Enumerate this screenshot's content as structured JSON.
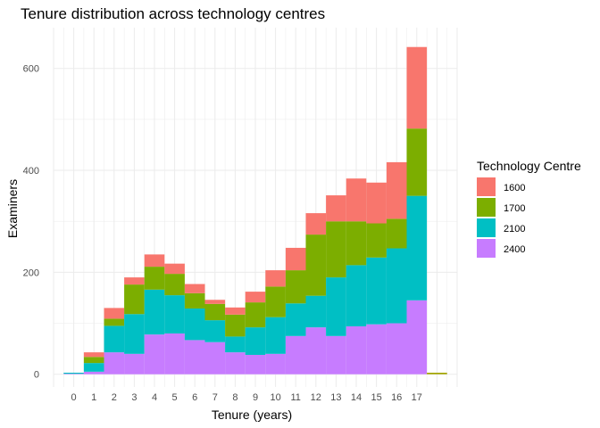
{
  "chart_data": {
    "type": "bar",
    "stacked": true,
    "title": "Tenure distribution across technology centres",
    "xlabel": "Tenure (years)",
    "ylabel": "Examiners",
    "categories": [
      "0",
      "1",
      "2",
      "3",
      "4",
      "5",
      "6",
      "7",
      "8",
      "9",
      "10",
      "11",
      "12",
      "13",
      "14",
      "15",
      "16",
      "17"
    ],
    "xlim": [
      -1,
      19
    ],
    "ylim": [
      -25,
      680
    ],
    "yticks": [
      0,
      200,
      400,
      600
    ],
    "grid": true,
    "legend": {
      "title": "Technology Centre",
      "placement": "right",
      "entries": [
        {
          "label": "1600",
          "color": "#F8766D"
        },
        {
          "label": "1700",
          "color": "#7CAE00"
        },
        {
          "label": "2100",
          "color": "#00BFC4"
        },
        {
          "label": "2400",
          "color": "#C77CFF"
        }
      ]
    },
    "series": [
      {
        "name": "2400",
        "color": "#C77CFF",
        "values": [
          1,
          5,
          43,
          40,
          78,
          80,
          67,
          63,
          43,
          38,
          40,
          75,
          92,
          75,
          94,
          98,
          100,
          145
        ]
      },
      {
        "name": "2100",
        "color": "#00BFC4",
        "values": [
          2,
          17,
          52,
          78,
          88,
          75,
          62,
          43,
          31,
          54,
          72,
          64,
          62,
          115,
          120,
          131,
          147,
          205
        ]
      },
      {
        "name": "1700",
        "color": "#7CAE00",
        "values": [
          0,
          12,
          14,
          58,
          45,
          42,
          30,
          32,
          43,
          49,
          60,
          65,
          120,
          110,
          86,
          67,
          58,
          132
        ]
      },
      {
        "name": "1600",
        "color": "#F8766D",
        "values": [
          0,
          9,
          21,
          14,
          24,
          20,
          18,
          8,
          14,
          21,
          32,
          44,
          42,
          51,
          84,
          80,
          111,
          160
        ]
      }
    ],
    "extra_bars": [
      {
        "x": 18,
        "value": 3,
        "color": "#A3A500"
      }
    ]
  }
}
